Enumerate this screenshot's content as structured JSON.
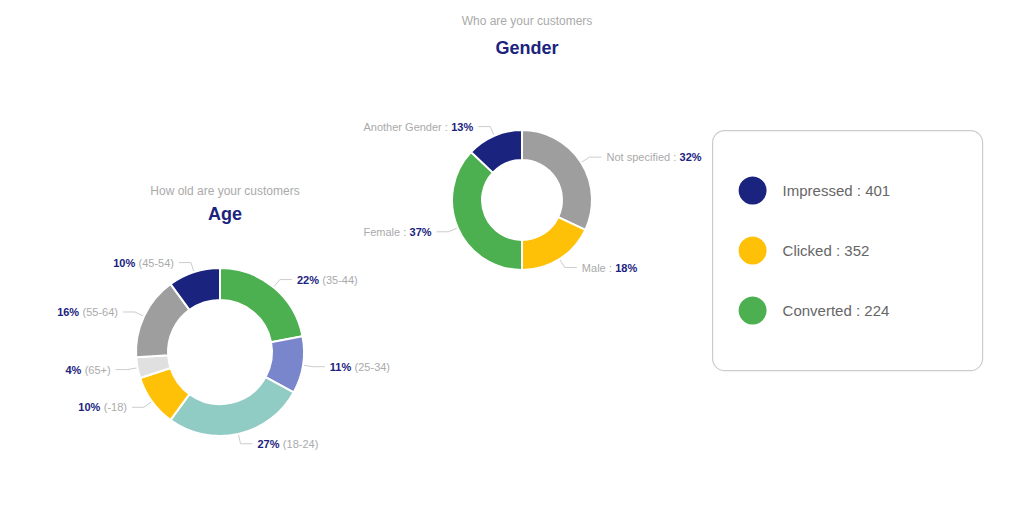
{
  "chart_data": [
    {
      "type": "pie",
      "title": "Gender",
      "subtitle": "Who are your customers",
      "categories": [
        "Not specified :",
        "Male :",
        "Female :",
        "Another Gender :"
      ],
      "values": [
        32,
        18,
        37,
        13
      ],
      "value_labels": [
        "32%",
        "18%",
        "37%",
        "13%"
      ],
      "colors": [
        "#9e9e9e",
        "#ffc107",
        "#4caf50",
        "#1a237e"
      ],
      "data_labels": true,
      "annotations": [
        {
          "text": "Impressed : 401",
          "color": "#1a237e"
        },
        {
          "text": "Clicked : 352",
          "color": "#ffc107"
        },
        {
          "text": "Converted : 224",
          "color": "#4caf50"
        }
      ]
    },
    {
      "type": "pie",
      "title": "Age",
      "subtitle": "How old are your customers",
      "categories": [
        "(35-44)",
        "(25-34)",
        "(18-24)",
        "(-18)",
        "(65+)",
        "(55-64)",
        "(45-54)"
      ],
      "values": [
        22,
        11,
        27,
        10,
        4,
        16,
        10
      ],
      "value_labels": [
        "22%",
        "11%",
        "27%",
        "10%",
        "4%",
        "16%",
        "10%"
      ],
      "colors": [
        "#4caf50",
        "#7986cb",
        "#90cbc4",
        "#ffc107",
        "#e0e0e0",
        "#9e9e9e",
        "#1a237e"
      ],
      "data_labels": true
    }
  ]
}
